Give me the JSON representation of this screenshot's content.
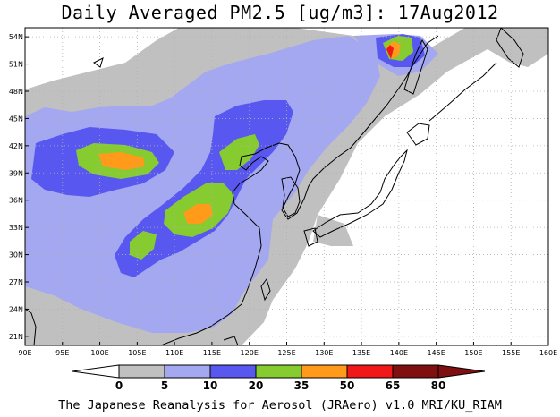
{
  "title": "Daily Averaged PM2.5 [ug/m3]: 17Aug2012",
  "footer": "The Japanese Reanalysis for Aerosol (JRAero) v1.0 MRI/KU_RIAM",
  "map": {
    "lon_range": [
      90,
      160
    ],
    "lat_range": [
      20,
      55
    ],
    "lon_ticks": [
      90,
      95,
      100,
      105,
      110,
      115,
      120,
      125,
      130,
      135,
      140,
      145,
      150,
      155,
      160
    ],
    "lon_tick_labels": [
      "90E",
      "95E",
      "100E",
      "105E",
      "110E",
      "115E",
      "120E",
      "125E",
      "130E",
      "135E",
      "140E",
      "145E",
      "150E",
      "155E",
      "160E"
    ],
    "lat_ticks": [
      21,
      24,
      27,
      30,
      33,
      36,
      39,
      42,
      45,
      48,
      51,
      54
    ],
    "lat_tick_labels": [
      "21N",
      "24N",
      "27N",
      "30N",
      "33N",
      "36N",
      "39N",
      "42N",
      "45N",
      "48N",
      "51N",
      "54N"
    ],
    "grid": true
  },
  "colorbar": {
    "levels": [
      "0",
      "5",
      "10",
      "20",
      "35",
      "50",
      "65",
      "80"
    ],
    "colors": [
      "#ffffff",
      "#c0c0c0",
      "#a4a8f0",
      "#5858f0",
      "#86cc30",
      "#ff9a1a",
      "#f01818",
      "#801010"
    ],
    "under_color": "#ffffff",
    "over_color": "#801010"
  }
}
